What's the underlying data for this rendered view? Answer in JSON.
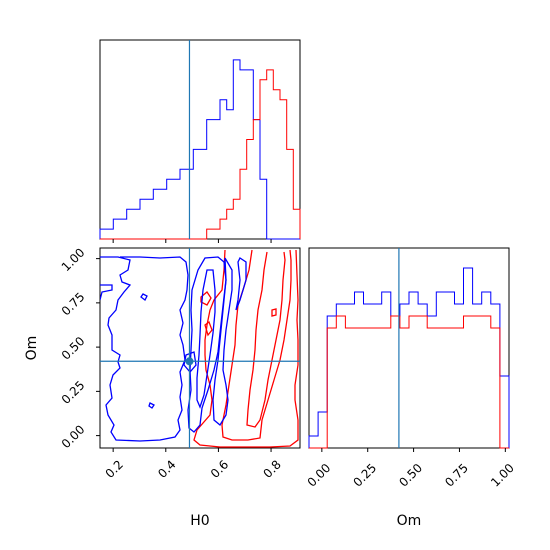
{
  "chart_data": {
    "type": "corner",
    "parameters": [
      "H0",
      "Om"
    ],
    "truth": {
      "H0": 0.49,
      "Om": 0.42
    },
    "colors": {
      "blue": "#0000ff",
      "red": "#ff0000",
      "truth": "#1f77b4",
      "frame": "#000000"
    },
    "panels": {
      "hist_H0": {
        "type": "histogram",
        "xlim": [
          0.15,
          0.91
        ],
        "bins": 30,
        "series": [
          {
            "color": "blue",
            "counts": [
              1,
              1,
              2,
              2,
              3,
              3,
              4,
              4,
              5,
              5,
              6,
              6,
              7,
              7,
              9,
              9,
              12,
              12,
              14,
              13,
              18,
              17,
              17,
              12,
              6,
              0,
              0,
              0,
              0,
              0
            ]
          },
          {
            "color": "red",
            "counts": [
              0,
              0,
              0,
              0,
              0,
              0,
              0,
              0,
              0,
              0,
              0,
              0,
              0,
              0,
              0,
              0,
              1,
              1,
              2,
              3,
              4,
              7,
              10,
              12,
              16,
              17,
              15,
              14,
              9,
              3
            ]
          }
        ]
      },
      "hist_Om": {
        "type": "histogram",
        "xlim": [
          -0.07,
          1.02
        ],
        "xticks": [
          "0.00",
          "0.25",
          "0.50",
          "0.75",
          "1.00"
        ],
        "xlabel": "Om",
        "bins": 22,
        "series": [
          {
            "color": "blue",
            "counts": [
              1,
              3,
              11,
              12,
              12,
              13,
              12,
              12,
              13,
              11,
              12,
              13,
              12,
              11,
              13,
              13,
              12,
              15,
              12,
              13,
              12,
              6
            ]
          },
          {
            "color": "red",
            "counts": [
              0,
              0,
              10,
              11,
              10,
              10,
              10,
              10,
              10,
              11,
              10,
              11,
              11,
              10,
              10,
              10,
              10,
              11,
              11,
              11,
              10,
              0
            ]
          }
        ]
      },
      "contour_H0_Om": {
        "type": "contour",
        "xlim": [
          0.15,
          0.91
        ],
        "ylim": [
          -0.07,
          1.06
        ],
        "xticks": [
          "0.2",
          "0.4",
          "0.6",
          "0.8"
        ],
        "yticks": [
          "0.00",
          "0.25",
          "0.50",
          "0.75",
          "1.00"
        ],
        "xlabel": "H0",
        "ylabel": "Om"
      }
    }
  }
}
